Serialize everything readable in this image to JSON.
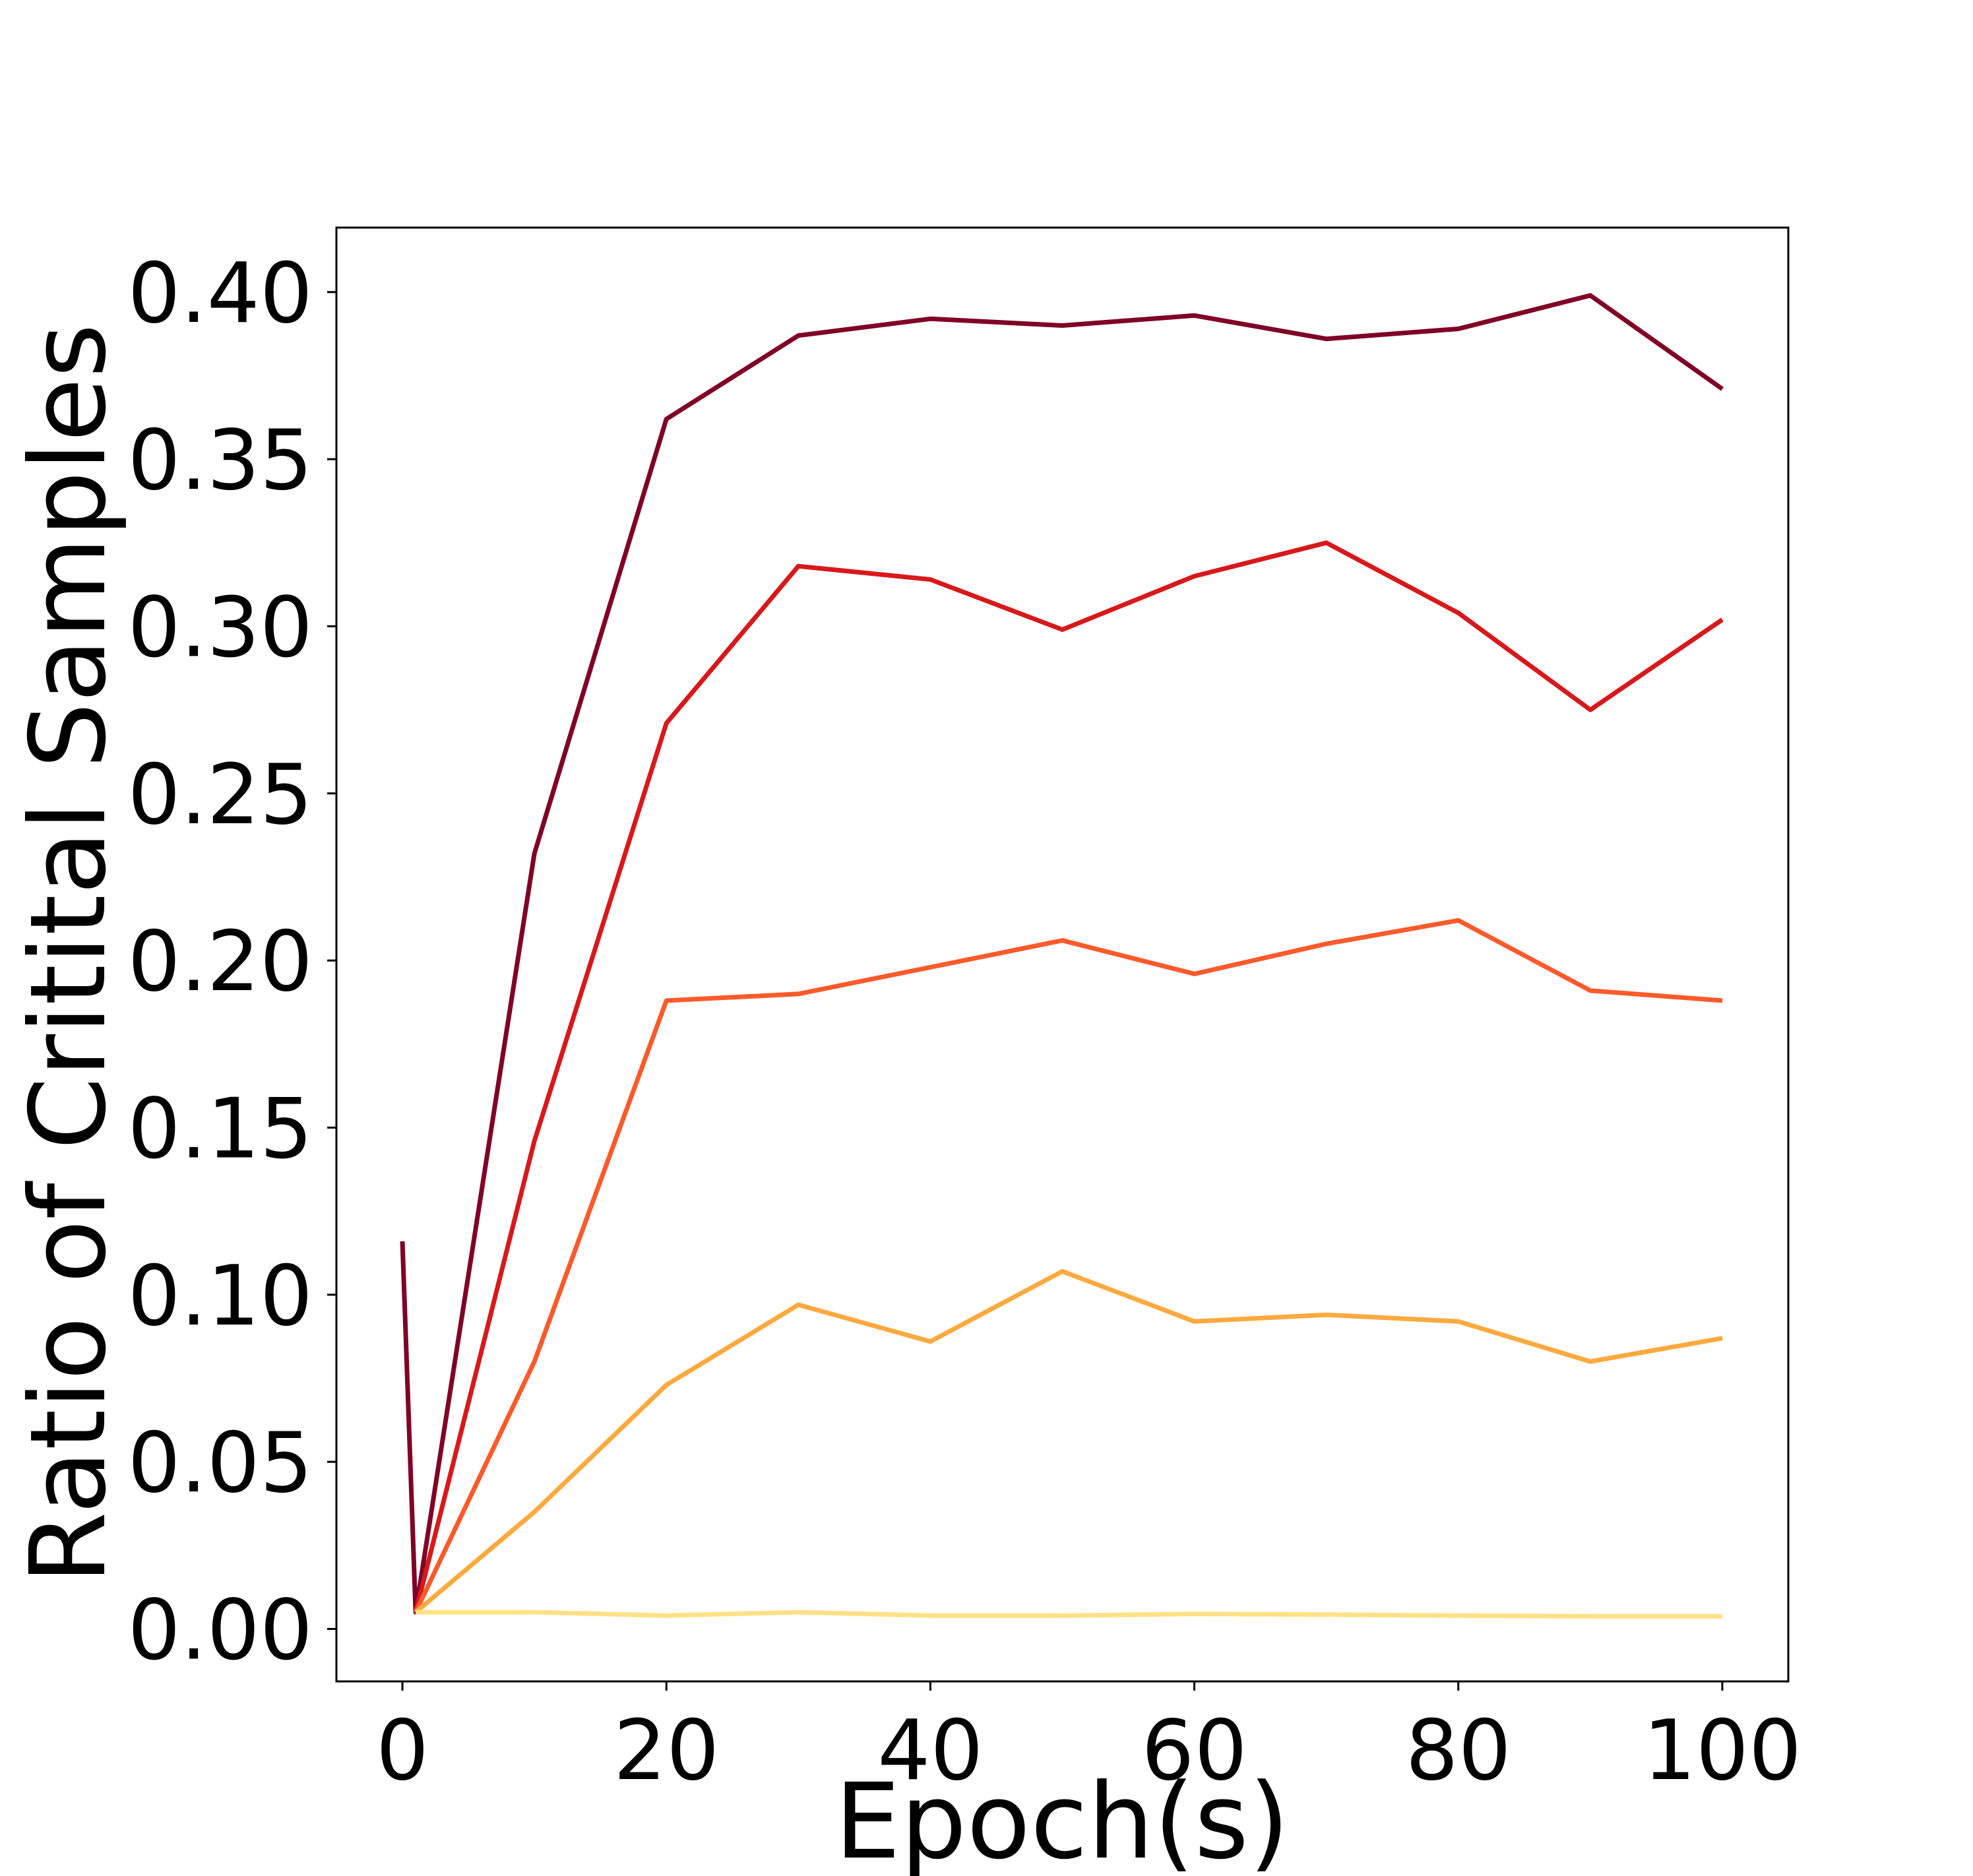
{
  "chart_data": {
    "type": "line",
    "title": "",
    "xlabel": "Epoch(s)",
    "ylabel": "Ratio of Critital Samples",
    "xlim": [
      -5,
      105
    ],
    "ylim": [
      -0.0157,
      0.4193
    ],
    "xticks": [
      0,
      20,
      40,
      60,
      80,
      100
    ],
    "xtick_labels": [
      "0",
      "20",
      "40",
      "60",
      "80",
      "100"
    ],
    "yticks": [
      0.0,
      0.05,
      0.1,
      0.15,
      0.2,
      0.25,
      0.3,
      0.35,
      0.4
    ],
    "ytick_labels": [
      "0.00",
      "0.05",
      "0.10",
      "0.15",
      "0.20",
      "0.25",
      "0.30",
      "0.35",
      "0.40"
    ],
    "grid": false,
    "legend": null,
    "series": [
      {
        "color": "#800026",
        "x": [
          0,
          1,
          10,
          20,
          30,
          40,
          50,
          60,
          70,
          80,
          90,
          100
        ],
        "y": [
          0.116,
          0.005,
          0.232,
          0.362,
          0.387,
          0.392,
          0.39,
          0.393,
          0.386,
          0.389,
          0.399,
          0.371
        ]
      },
      {
        "color": "#d7191c",
        "x": [
          1,
          10,
          20,
          30,
          40,
          50,
          60,
          70,
          80,
          90,
          100
        ],
        "y": [
          0.005,
          0.146,
          0.271,
          0.318,
          0.314,
          0.299,
          0.315,
          0.325,
          0.304,
          0.275,
          0.302
        ]
      },
      {
        "color": "#fc5a2b",
        "x": [
          1,
          10,
          20,
          30,
          40,
          50,
          60,
          70,
          80,
          90,
          100
        ],
        "y": [
          0.005,
          0.08,
          0.188,
          0.19,
          0.198,
          0.206,
          0.196,
          0.205,
          0.212,
          0.191,
          0.188
        ]
      },
      {
        "color": "#fca93e",
        "x": [
          1,
          10,
          20,
          30,
          40,
          50,
          60,
          70,
          80,
          90,
          100
        ],
        "y": [
          0.005,
          0.035,
          0.073,
          0.097,
          0.086,
          0.107,
          0.092,
          0.094,
          0.092,
          0.08,
          0.087
        ]
      },
      {
        "color": "#fee187",
        "x": [
          1,
          10,
          20,
          30,
          40,
          50,
          60,
          70,
          80,
          90,
          100
        ],
        "y": [
          0.005,
          0.005,
          0.004,
          0.005,
          0.004,
          0.004,
          0.0045,
          0.0043,
          0.004,
          0.0038,
          0.0038
        ]
      }
    ]
  }
}
